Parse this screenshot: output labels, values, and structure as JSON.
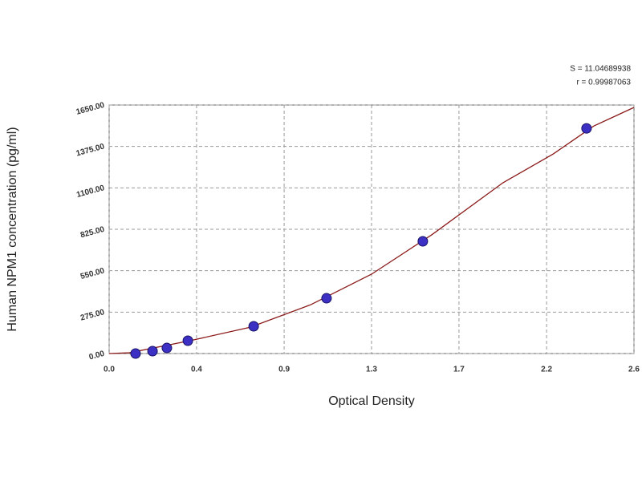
{
  "chart_data": {
    "type": "scatter",
    "x_label": "Optical Density",
    "y_label": "Human NPM1 concentration (pg/ml)",
    "annotations": [
      "S = 11.04689938",
      "r = 0.99987063"
    ],
    "xlim": [
      0,
      2.6
    ],
    "xticks": [
      {
        "value": 0,
        "label": "0.0"
      },
      {
        "value": 0.433,
        "label": "0.4"
      },
      {
        "value": 0.867,
        "label": "0.9"
      },
      1.3,
      {
        "value": 1.733,
        "label": "1.7"
      },
      {
        "value": 2.167,
        "label": "2.2"
      },
      2.6
    ],
    "ylim": [
      0,
      1650
    ],
    "yticks": [
      {
        "value": 0,
        "label": "0.00"
      },
      {
        "value": 275,
        "label": "275.00"
      },
      {
        "value": 550,
        "label": "550.00"
      },
      {
        "value": 825,
        "label": "825.00"
      },
      {
        "value": 1100,
        "label": "1100.00"
      },
      {
        "value": 1375,
        "label": "1375.00"
      },
      {
        "value": 1650,
        "label": "1650.00"
      }
    ],
    "grid": true,
    "series": [
      {
        "kind": "line",
        "color": "#8b1a1a",
        "x": [
          0.0,
          0.1,
          0.4,
          0.7,
          1.0,
          1.3,
          1.6,
          1.95,
          2.2,
          2.4,
          2.6
        ],
        "values": [
          0,
          5,
          85,
          175,
          325,
          527,
          790,
          1133,
          1325,
          1510,
          1634
        ]
      },
      {
        "kind": "scatter",
        "color": "#3b2fc4",
        "x": [
          0.131,
          0.215,
          0.286,
          0.39,
          0.716,
          1.077,
          1.554,
          2.365
        ],
        "values": [
          0,
          16,
          37,
          85,
          181,
          367,
          745,
          1495
        ]
      }
    ]
  }
}
